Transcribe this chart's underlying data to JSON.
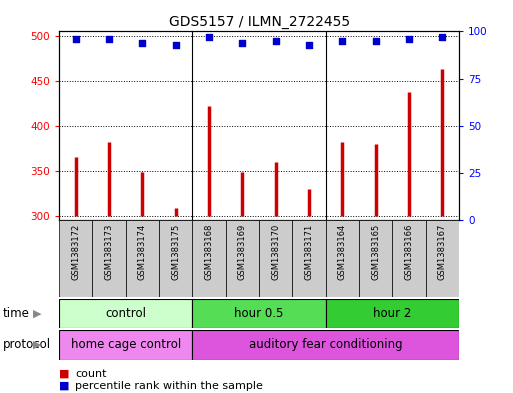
{
  "title": "GDS5157 / ILMN_2722455",
  "samples": [
    "GSM1383172",
    "GSM1383173",
    "GSM1383174",
    "GSM1383175",
    "GSM1383168",
    "GSM1383169",
    "GSM1383170",
    "GSM1383171",
    "GSM1383164",
    "GSM1383165",
    "GSM1383166",
    "GSM1383167"
  ],
  "counts": [
    365,
    382,
    348,
    308,
    422,
    349,
    360,
    330,
    382,
    380,
    438,
    463
  ],
  "percentiles": [
    96,
    96,
    94,
    93,
    97,
    94,
    95,
    93,
    95,
    95,
    96,
    97
  ],
  "ylim_left": [
    295,
    505
  ],
  "ylim_right": [
    0,
    100
  ],
  "yticks_left": [
    300,
    350,
    400,
    450,
    500
  ],
  "yticks_right": [
    0,
    25,
    50,
    75,
    100
  ],
  "bar_color": "#cc0000",
  "dot_color": "#0000cc",
  "time_groups": [
    {
      "label": "control",
      "start": 0,
      "end": 4,
      "color": "#ccffcc"
    },
    {
      "label": "hour 0.5",
      "start": 4,
      "end": 8,
      "color": "#55dd55"
    },
    {
      "label": "hour 2",
      "start": 8,
      "end": 12,
      "color": "#33cc33"
    }
  ],
  "protocol_groups": [
    {
      "label": "home cage control",
      "start": 0,
      "end": 4,
      "color": "#ee88ee"
    },
    {
      "label": "auditory fear conditioning",
      "start": 4,
      "end": 12,
      "color": "#dd55dd"
    }
  ],
  "legend_count_label": "count",
  "legend_pct_label": "percentile rank within the sample",
  "time_label": "time",
  "protocol_label": "protocol",
  "bg_color": "#ffffff",
  "xtick_bg": "#dddddd",
  "title_fontsize": 10,
  "tick_fontsize": 7.5,
  "label_fontsize": 8.5,
  "xtick_fontsize": 6
}
